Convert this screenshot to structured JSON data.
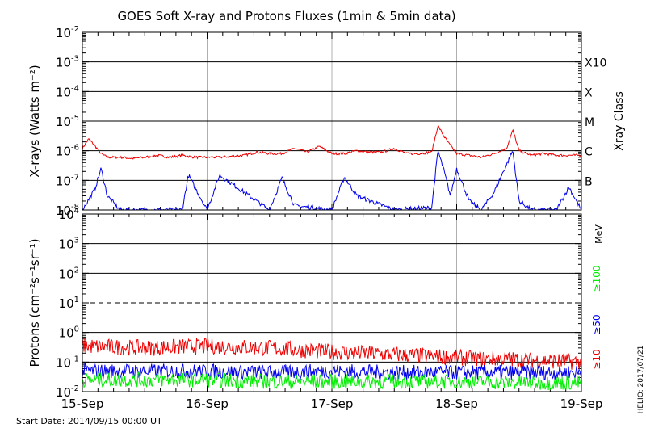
{
  "title": "GOES Soft X-ray and Protons Fluxes   (1min & 5min data)",
  "start_date": "Start Date: 2014/09/15 00:00 UT",
  "credit": "HELIO: 2017/07/21",
  "chart_data": [
    {
      "type": "line",
      "panel": "xray",
      "ylabel": "X-rays (Watts m⁻²)",
      "yscale": "log",
      "ylim": [
        1e-08,
        0.01
      ],
      "y_ticks": [
        {
          "base": "10",
          "exp": "-8",
          "value": 1e-08
        },
        {
          "base": "10",
          "exp": "-7",
          "value": 1e-07
        },
        {
          "base": "10",
          "exp": "-6",
          "value": 1e-06
        },
        {
          "base": "10",
          "exp": "-5",
          "value": 1e-05
        },
        {
          "base": "10",
          "exp": "-4",
          "value": 0.0001
        },
        {
          "base": "10",
          "exp": "-3",
          "value": 0.001
        },
        {
          "base": "10",
          "exp": "-2",
          "value": 0.01
        }
      ],
      "right_axis_label": "Xray Class",
      "classes": [
        {
          "label": "X10",
          "value": 0.001
        },
        {
          "label": "X",
          "value": 0.0001
        },
        {
          "label": "M",
          "value": 1e-05
        },
        {
          "label": "C",
          "value": 1e-06
        },
        {
          "label": "B",
          "value": 1e-07
        }
      ],
      "x_categories": [
        "15-Sep",
        "16-Sep",
        "17-Sep",
        "18-Sep",
        "19-Sep"
      ],
      "series": [
        {
          "color": "#ee0000",
          "x": [
            0,
            0.05,
            0.1,
            0.15,
            0.2,
            0.3,
            0.4,
            0.5,
            0.6,
            0.7,
            0.8,
            0.9,
            1.0,
            1.1,
            1.2,
            1.3,
            1.4,
            1.5,
            1.6,
            1.7,
            1.8,
            1.9,
            2.0,
            2.1,
            2.2,
            2.3,
            2.4,
            2.5,
            2.6,
            2.7,
            2.8,
            2.85,
            2.9,
            2.95,
            3.0,
            3.1,
            3.2,
            3.3,
            3.4,
            3.45,
            3.5,
            3.6,
            3.7,
            3.8,
            3.9,
            4.0
          ],
          "values": [
            1.2e-06,
            2.5e-06,
            1.5e-06,
            8e-07,
            6e-07,
            6e-07,
            5.5e-07,
            6e-07,
            7e-07,
            6e-07,
            7e-07,
            6e-07,
            6e-07,
            6e-07,
            6.5e-07,
            7e-07,
            9e-07,
            8e-07,
            8e-07,
            1.2e-06,
            9e-07,
            1.4e-06,
            8e-07,
            8e-07,
            1e-06,
            9e-07,
            9e-07,
            1.2e-06,
            8e-07,
            8e-07,
            9e-07,
            7e-06,
            3e-06,
            1.5e-06,
            8e-07,
            7e-07,
            6e-07,
            8e-07,
            1.2e-06,
            5e-06,
            1e-06,
            7e-07,
            8e-07,
            7e-07,
            7e-07,
            7e-07
          ]
        },
        {
          "color": "#0000ee",
          "x": [
            0,
            0.1,
            0.15,
            0.2,
            0.3,
            0.8,
            0.85,
            1.0,
            1.1,
            1.5,
            1.6,
            1.7,
            2.0,
            2.1,
            2.2,
            2.5,
            2.8,
            2.85,
            2.9,
            2.95,
            3.0,
            3.1,
            3.2,
            3.3,
            3.45,
            3.5,
            3.6,
            3.8,
            3.9,
            4.0
          ],
          "values": [
            1e-08,
            5e-08,
            2.5e-07,
            3e-08,
            1e-08,
            1e-08,
            1.5e-07,
            1e-08,
            1.5e-07,
            1e-08,
            1.2e-07,
            1.4e-08,
            1e-08,
            1.3e-07,
            3e-08,
            1e-08,
            1.2e-08,
            1e-06,
            2e-07,
            3e-08,
            2.5e-07,
            2e-08,
            1e-08,
            4e-08,
            1e-06,
            2e-08,
            1e-08,
            1e-08,
            6e-08,
            1e-08
          ]
        }
      ]
    },
    {
      "type": "line",
      "panel": "protons",
      "ylabel": "Protons (cm⁻²s⁻¹sr⁻¹)",
      "yscale": "log",
      "ylim": [
        0.01,
        10000
      ],
      "y_ticks": [
        {
          "base": "10",
          "exp": "-2",
          "value": 0.01
        },
        {
          "base": "10",
          "exp": "-1",
          "value": 0.1
        },
        {
          "base": "10",
          "exp": "0",
          "value": 1
        },
        {
          "base": "10",
          "exp": "1",
          "value": 10
        },
        {
          "base": "10",
          "exp": "2",
          "value": 100
        },
        {
          "base": "10",
          "exp": "3",
          "value": 1000
        },
        {
          "base": "10",
          "exp": "4",
          "value": 10000
        }
      ],
      "threshold": 10,
      "unit_label": "MeV",
      "x_categories": [
        "15-Sep",
        "16-Sep",
        "17-Sep",
        "18-Sep",
        "19-Sep"
      ],
      "series": [
        {
          "name": "≥10",
          "color": "#ee0000",
          "x": [
            0,
            0.5,
            1.0,
            1.5,
            2.0,
            2.5,
            3.0,
            3.5,
            4.0
          ],
          "values": [
            0.35,
            0.3,
            0.35,
            0.3,
            0.22,
            0.18,
            0.14,
            0.12,
            0.1
          ]
        },
        {
          "name": "≥50",
          "color": "#0000ee",
          "x": [
            0,
            0.5,
            1.0,
            1.5,
            2.0,
            2.5,
            3.0,
            3.5,
            4.0
          ],
          "values": [
            0.05,
            0.05,
            0.05,
            0.045,
            0.05,
            0.045,
            0.045,
            0.045,
            0.045
          ]
        },
        {
          "name": "≥100",
          "color": "#00ee00",
          "x": [
            0,
            0.5,
            1.0,
            1.5,
            2.0,
            2.5,
            3.0,
            3.5,
            4.0
          ],
          "values": [
            0.025,
            0.025,
            0.025,
            0.022,
            0.022,
            0.022,
            0.022,
            0.02,
            0.02
          ]
        }
      ]
    }
  ]
}
